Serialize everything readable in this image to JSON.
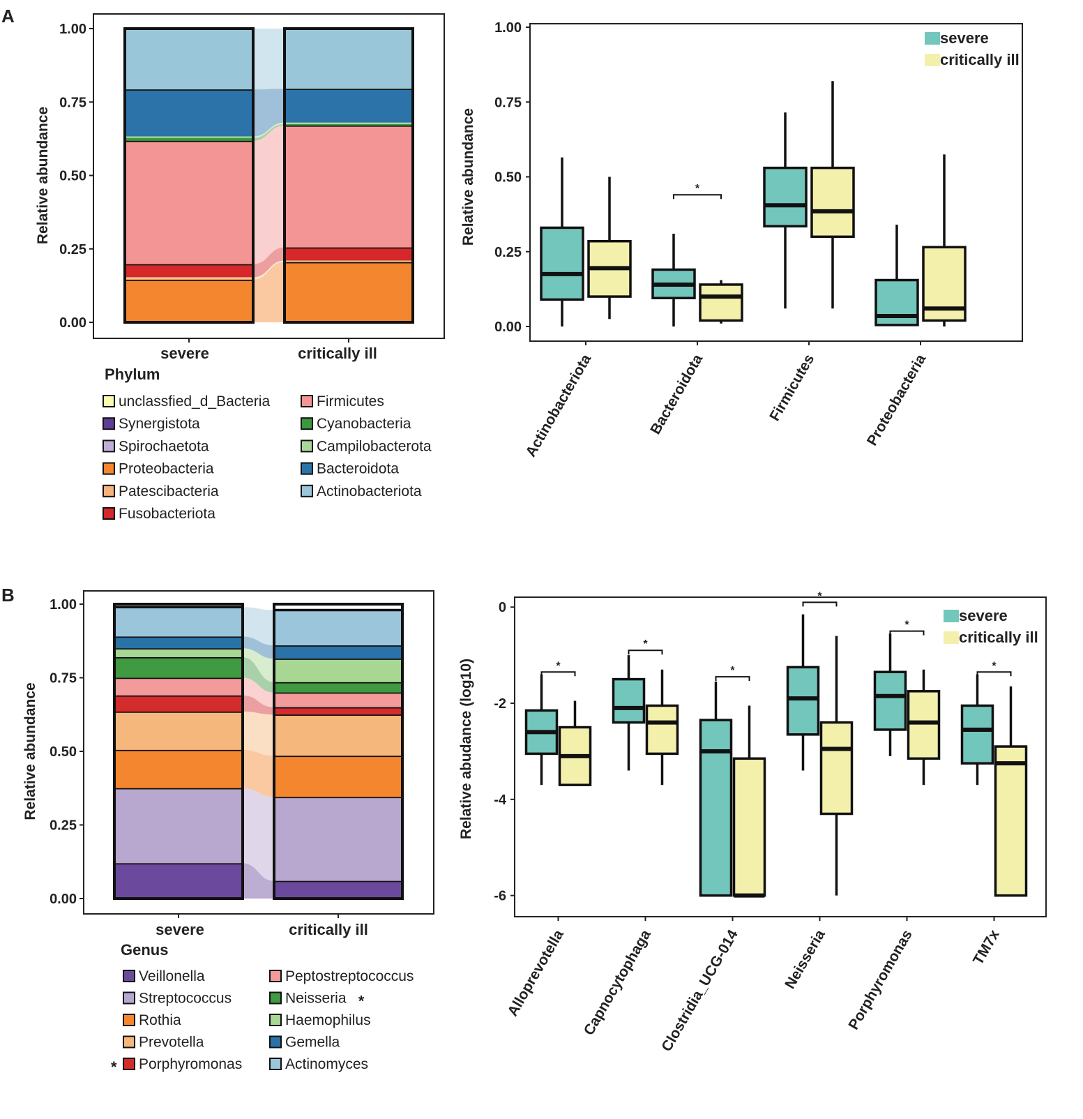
{
  "panels": {
    "a": "A",
    "b": "B"
  },
  "colors": {
    "severe": "#73c6bc",
    "critically_ill": "#f3f0ac",
    "Actinobacteriota": "#9ac6da",
    "Bacteroidota": "#2b73a9",
    "Campilobacterota": "#a9d79a",
    "Cyanobacteria": "#3b9a3f",
    "Firmicutes": "#f49595",
    "Fusobacteriota": "#d6282a",
    "Patescibacteria": "#f7b47a",
    "Proteobacteria": "#f3862f",
    "Spirochaetota": "#bfaed6",
    "Synergistota": "#5e3c97",
    "unclassfied_d_Bacteria": "#fafab0",
    "Veillonella": "#6b4a9e",
    "Streptococcus": "#b8a7cf",
    "Rothia": "#f3862f",
    "Prevotella": "#f6b77d",
    "Porphyromonas": "#d42b2c",
    "Peptostreptococcus": "#f39b9b",
    "Neisseria": "#3f9a41",
    "Haemophilus": "#a8d693",
    "Gemella": "#2a73a8",
    "Actinomyces": "#9bc5da"
  },
  "chart_data": [
    {
      "id": "A-stacked",
      "type": "bar",
      "stacked": true,
      "categories": [
        "severe",
        "critically ill"
      ],
      "ylabel": "Relative abundance",
      "ylim": [
        0,
        1
      ],
      "yticks": [
        "0.00",
        "0.25",
        "0.50",
        "0.75",
        "1.00"
      ],
      "legend_title": "Phylum",
      "legend_order": [
        "unclassfied_d_Bacteria",
        "Synergistota",
        "Spirochaetota",
        "Proteobacteria",
        "Patescibacteria",
        "Fusobacteriota",
        "Firmicutes",
        "Cyanobacteria",
        "Campilobacterota",
        "Bacteroidota",
        "Actinobacteriota"
      ],
      "series": [
        {
          "name": "Proteobacteria",
          "values": [
            0.145,
            0.205
          ]
        },
        {
          "name": "Patescibacteria",
          "values": [
            0.005,
            0.003
          ]
        },
        {
          "name": "unclassfied_d_Bacteria",
          "values": [
            0.003,
            0.002
          ]
        },
        {
          "name": "Fusobacteriota",
          "values": [
            0.045,
            0.045
          ]
        },
        {
          "name": "Firmicutes",
          "values": [
            0.42,
            0.415
          ]
        },
        {
          "name": "Cyanobacteria",
          "values": [
            0.01,
            0.005
          ]
        },
        {
          "name": "Campilobacterota",
          "values": [
            0.005,
            0.005
          ]
        },
        {
          "name": "Bacteroidota",
          "values": [
            0.16,
            0.115
          ]
        },
        {
          "name": "Actinobacteriota",
          "values": [
            0.207,
            0.205
          ]
        }
      ]
    },
    {
      "id": "A-box",
      "type": "box",
      "categories": [
        "Actinobacteriota",
        "Bacteroidota",
        "Firmicutes",
        "Proteobacteria"
      ],
      "ylabel": "Relative abundance",
      "ylim": [
        0,
        1
      ],
      "yticks": [
        "0.00",
        "0.25",
        "0.50",
        "0.75",
        "1.00"
      ],
      "legend": [
        "severe",
        "critically ill"
      ],
      "series": [
        {
          "name": "severe",
          "boxes": [
            {
              "min": 0.0,
              "q1": 0.09,
              "median": 0.175,
              "q3": 0.33,
              "max": 0.565
            },
            {
              "min": 0.0,
              "q1": 0.095,
              "median": 0.14,
              "q3": 0.19,
              "max": 0.31
            },
            {
              "min": 0.06,
              "q1": 0.335,
              "median": 0.405,
              "q3": 0.53,
              "max": 0.715
            },
            {
              "min": 0.005,
              "q1": 0.005,
              "median": 0.035,
              "q3": 0.155,
              "max": 0.34
            }
          ]
        },
        {
          "name": "critically ill",
          "boxes": [
            {
              "min": 0.025,
              "q1": 0.1,
              "median": 0.195,
              "q3": 0.285,
              "max": 0.5
            },
            {
              "min": 0.01,
              "q1": 0.02,
              "median": 0.1,
              "q3": 0.14,
              "max": 0.155
            },
            {
              "min": 0.06,
              "q1": 0.3,
              "median": 0.385,
              "q3": 0.53,
              "max": 0.82
            },
            {
              "min": 0.0,
              "q1": 0.02,
              "median": 0.06,
              "q3": 0.265,
              "max": 0.575
            }
          ]
        }
      ],
      "significance": [
        {
          "category": "Bacteroidota",
          "label": "*",
          "y": 0.44
        }
      ]
    },
    {
      "id": "B-stacked",
      "type": "bar",
      "stacked": true,
      "categories": [
        "severe",
        "critically ill"
      ],
      "ylabel": "Relative abundance",
      "ylim": [
        0,
        1
      ],
      "yticks": [
        "0.00",
        "0.25",
        "0.50",
        "0.75",
        "1.00"
      ],
      "legend_title": "Genus",
      "legend_order": [
        "Veillonella",
        "Streptococcus",
        "Rothia",
        "Prevotella",
        "Porphyromonas",
        "Peptostreptococcus",
        "Neisseria",
        "Haemophilus",
        "Gemella",
        "Actinomyces"
      ],
      "legend_marked": [
        "Porphyromonas",
        "Neisseria"
      ],
      "series": [
        {
          "name": "Veillonella",
          "values": [
            0.12,
            0.06
          ]
        },
        {
          "name": "Streptococcus",
          "values": [
            0.255,
            0.285
          ]
        },
        {
          "name": "Rothia",
          "values": [
            0.13,
            0.14
          ]
        },
        {
          "name": "Prevotella",
          "values": [
            0.13,
            0.14
          ]
        },
        {
          "name": "Porphyromonas",
          "values": [
            0.055,
            0.025
          ]
        },
        {
          "name": "Peptostreptococcus",
          "values": [
            0.06,
            0.05
          ]
        },
        {
          "name": "Neisseria",
          "values": [
            0.07,
            0.035
          ]
        },
        {
          "name": "Haemophilus",
          "values": [
            0.03,
            0.08
          ]
        },
        {
          "name": "Gemella",
          "values": [
            0.04,
            0.045
          ]
        },
        {
          "name": "Actinomyces",
          "values": [
            0.1,
            0.12
          ]
        }
      ]
    },
    {
      "id": "B-box",
      "type": "box",
      "categories": [
        "Alloprevotella",
        "Capnocytophaga",
        "Clostridia_UCG-014",
        "Neisseria",
        "Porphyromonas",
        "TM7x"
      ],
      "ylabel": "Relative abudance (log10)",
      "ylim": [
        -6.15,
        0.25
      ],
      "yticks": [
        "0",
        "-2",
        "-4",
        "-6"
      ],
      "legend": [
        "severe",
        "critically ill"
      ],
      "series": [
        {
          "name": "severe",
          "boxes": [
            {
              "min": -3.7,
              "q1": -3.05,
              "median": -2.6,
              "q3": -2.15,
              "max": -1.4
            },
            {
              "min": -3.4,
              "q1": -2.4,
              "median": -2.1,
              "q3": -1.5,
              "max": -1.0
            },
            {
              "min": -6.0,
              "q1": -6.0,
              "median": -3.0,
              "q3": -2.35,
              "max": -1.55
            },
            {
              "min": -3.4,
              "q1": -2.65,
              "median": -1.9,
              "q3": -1.25,
              "max": -0.15
            },
            {
              "min": -3.1,
              "q1": -2.55,
              "median": -1.85,
              "q3": -1.35,
              "max": -0.55
            },
            {
              "min": -3.7,
              "q1": -3.25,
              "median": -2.55,
              "q3": -2.05,
              "max": -1.4
            }
          ]
        },
        {
          "name": "critically ill",
          "boxes": [
            {
              "min": -3.7,
              "q1": -3.7,
              "median": -3.1,
              "q3": -2.5,
              "max": -1.95
            },
            {
              "min": -3.7,
              "q1": -3.05,
              "median": -2.4,
              "q3": -2.05,
              "max": -1.3
            },
            {
              "min": -6.0,
              "q1": -6.0,
              "median": -6.0,
              "q3": -3.15,
              "max": -2.05
            },
            {
              "min": -6.0,
              "q1": -4.3,
              "median": -2.95,
              "q3": -2.4,
              "max": -0.6
            },
            {
              "min": -3.7,
              "q1": -3.15,
              "median": -2.4,
              "q3": -1.75,
              "max": -1.3
            },
            {
              "min": -6.0,
              "q1": -6.0,
              "median": -3.25,
              "q3": -2.9,
              "max": -1.65
            }
          ]
        }
      ],
      "significance": [
        {
          "category": "Alloprevotella",
          "label": "*",
          "y": -1.35
        },
        {
          "category": "Capnocytophaga",
          "label": "*",
          "y": -0.9
        },
        {
          "category": "Clostridia_UCG-014",
          "label": "*",
          "y": -1.45
        },
        {
          "category": "Neisseria",
          "label": "*",
          "y": 0.1
        },
        {
          "category": "Porphyromonas",
          "label": "*",
          "y": -0.5
        },
        {
          "category": "TM7x",
          "label": "*",
          "y": -1.35
        }
      ]
    }
  ]
}
